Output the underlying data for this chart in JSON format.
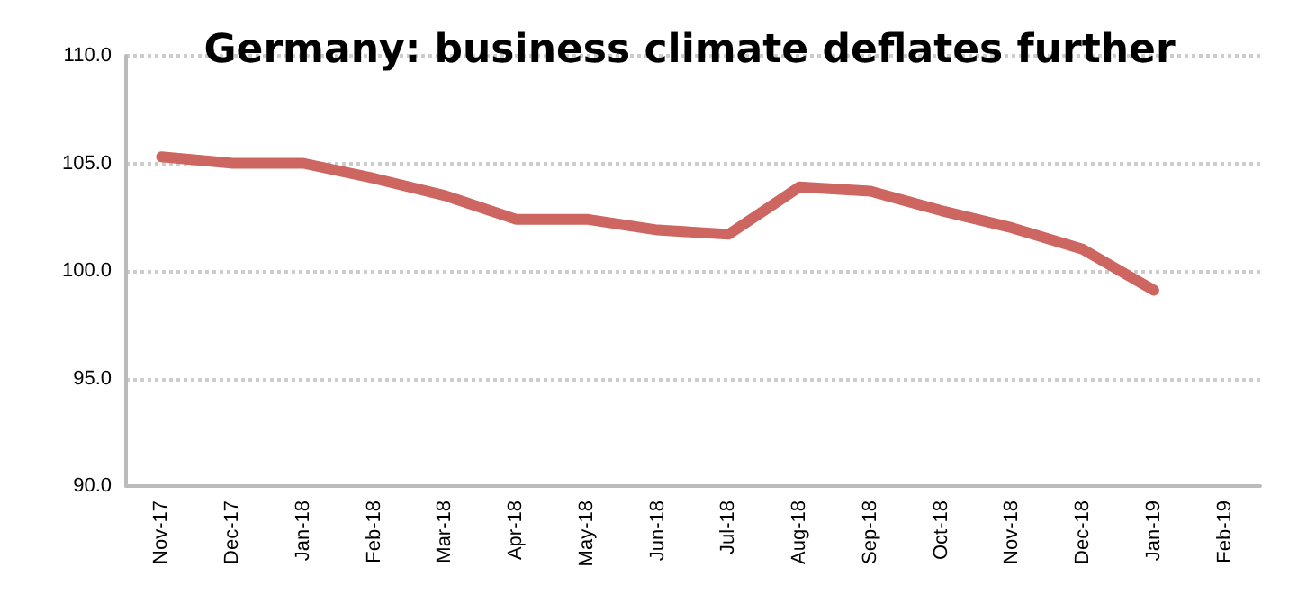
{
  "chart_data": {
    "type": "line",
    "title": "Germany: business climate deflates further",
    "categories": [
      "Nov-17",
      "Dec-17",
      "Jan-18",
      "Feb-18",
      "Mar-18",
      "Apr-18",
      "May-18",
      "Jun-18",
      "Jul-18",
      "Aug-18",
      "Sep-18",
      "Oct-18",
      "Nov-18",
      "Dec-18",
      "Jan-19",
      "Feb-19"
    ],
    "series": [
      {
        "color": "#cd6660",
        "values": [
          105.3,
          105.0,
          105.0,
          104.3,
          103.5,
          102.4,
          102.4,
          101.9,
          101.7,
          103.9,
          103.7,
          102.8,
          102.0,
          101.0,
          99.1,
          null
        ]
      }
    ],
    "ylim": [
      90,
      110
    ],
    "yticks": [
      {
        "value": 90,
        "label": "90.0"
      },
      {
        "value": 95,
        "label": "95.0"
      },
      {
        "value": 100,
        "label": "100.0"
      },
      {
        "value": 105,
        "label": "105.0"
      },
      {
        "value": 110,
        "label": "110.0"
      }
    ],
    "grid": "y",
    "marker": "none",
    "line_style": "solid"
  }
}
